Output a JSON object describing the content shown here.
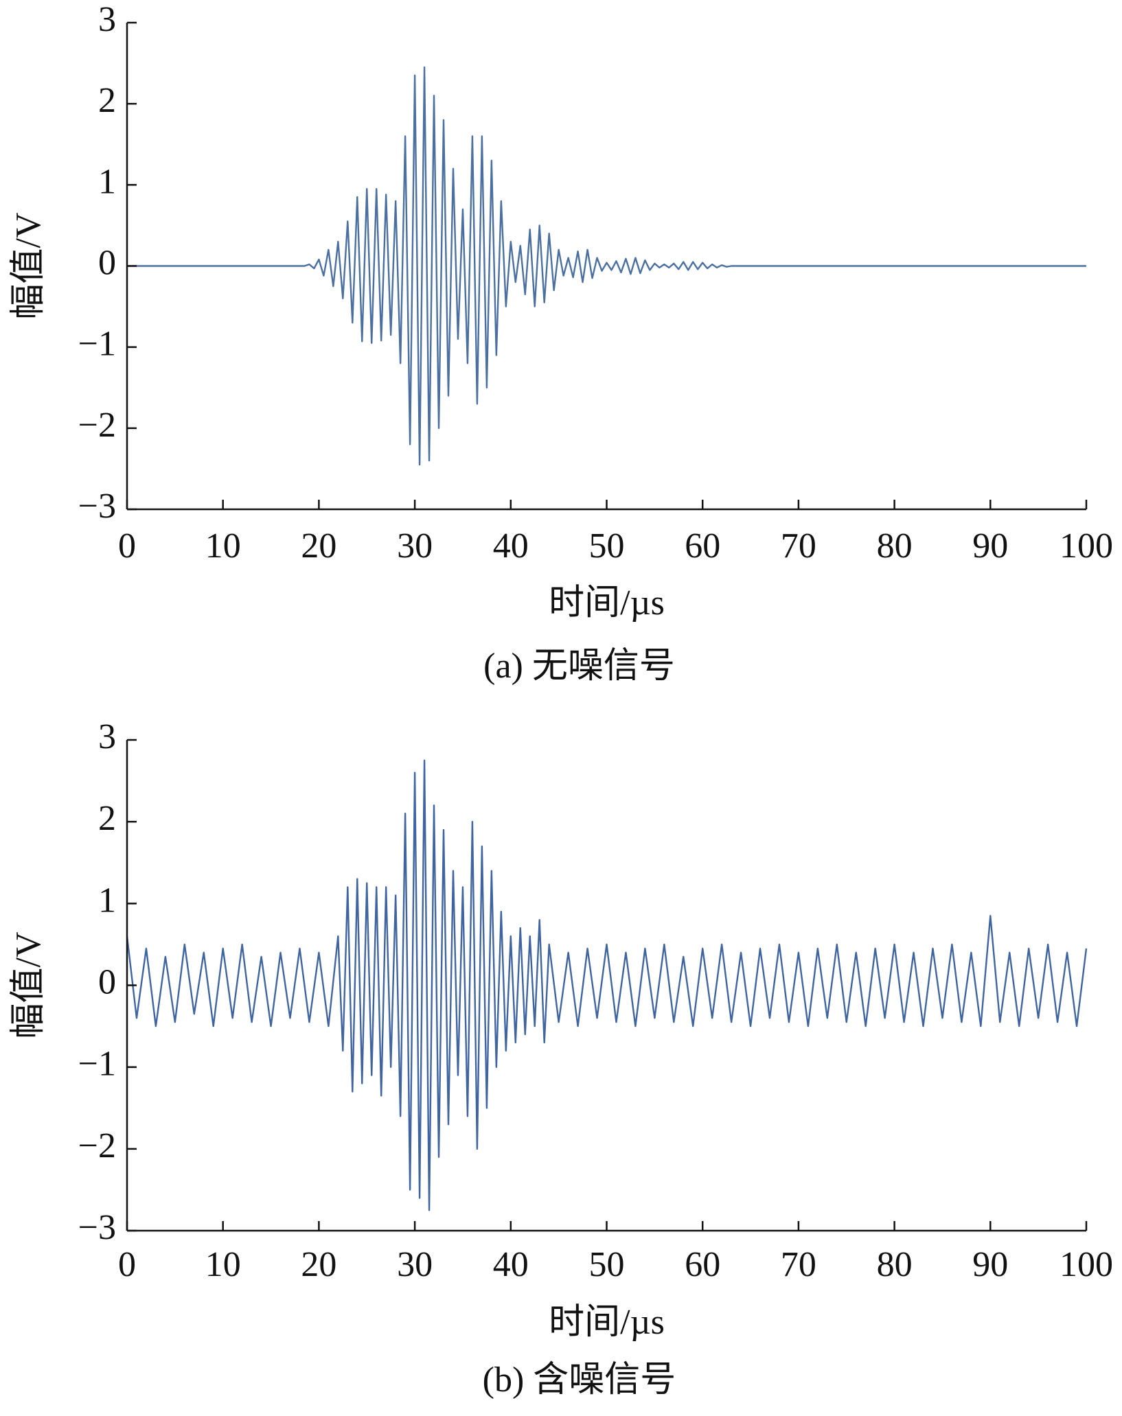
{
  "chart_data": [
    {
      "type": "line",
      "caption": "(a) 无噪信号",
      "x_label": "时间/µs",
      "y_label": "幅值/V",
      "color": "#4a6fa0",
      "xlim": [
        0,
        100
      ],
      "ylim": [
        -3,
        3
      ],
      "xticks": [
        0,
        10,
        20,
        30,
        40,
        50,
        60,
        70,
        80,
        90,
        100
      ],
      "yticks": [
        {
          "value": -3,
          "label": "−3"
        },
        {
          "value": -2,
          "label": "−2"
        },
        {
          "value": -1,
          "label": "−1"
        },
        0,
        1,
        2,
        3
      ],
      "x": [
        0,
        18,
        18.5,
        19,
        19.5,
        20,
        20.5,
        21,
        21.5,
        22,
        22.5,
        23,
        23.5,
        24,
        24.5,
        25,
        25.5,
        26,
        26.5,
        27,
        27.5,
        28,
        28.5,
        29,
        29.5,
        30,
        30.5,
        31,
        31.5,
        32,
        32.5,
        33,
        33.5,
        34,
        34.5,
        35,
        35.5,
        36,
        36.5,
        37,
        37.5,
        38,
        38.5,
        39,
        39.5,
        40,
        40.5,
        41,
        41.5,
        42,
        42.5,
        43,
        43.5,
        44,
        44.5,
        45,
        45.5,
        46,
        46.5,
        47,
        47.5,
        48,
        48.5,
        49,
        49.5,
        50,
        50.5,
        51,
        51.5,
        52,
        52.5,
        53,
        53.5,
        54,
        54.5,
        55,
        55.5,
        56,
        56.5,
        57,
        57.5,
        58,
        58.5,
        59,
        59.5,
        60,
        60.5,
        61,
        61.5,
        62,
        62.5,
        63,
        63.5,
        64,
        100
      ],
      "values": [
        0,
        0,
        0,
        0.02,
        -0.03,
        0.08,
        -0.12,
        0.2,
        -0.25,
        0.3,
        -0.4,
        0.55,
        -0.7,
        0.85,
        -0.93,
        0.95,
        -0.95,
        0.95,
        -0.92,
        0.88,
        -0.85,
        0.8,
        -1.2,
        1.6,
        -2.2,
        2.35,
        -2.45,
        2.45,
        -2.4,
        2.1,
        -2.0,
        1.8,
        -1.6,
        1.2,
        -0.9,
        0.7,
        -1.2,
        1.6,
        -1.7,
        1.6,
        -1.5,
        1.3,
        -1.1,
        0.8,
        -0.5,
        0.3,
        -0.2,
        0.25,
        -0.35,
        0.45,
        -0.5,
        0.5,
        -0.45,
        0.4,
        -0.3,
        0.2,
        -0.12,
        0.1,
        -0.14,
        0.18,
        -0.2,
        0.2,
        -0.15,
        0.1,
        -0.06,
        0.04,
        -0.05,
        0.06,
        -0.08,
        0.09,
        -0.1,
        0.1,
        -0.09,
        0.07,
        -0.05,
        0.03,
        -0.02,
        0.02,
        -0.02,
        0.03,
        -0.04,
        0.05,
        -0.05,
        0.05,
        -0.04,
        0.04,
        -0.03,
        0.02,
        -0.02,
        0.01,
        -0.01,
        0,
        0,
        0,
        0
      ]
    },
    {
      "type": "line",
      "caption": "(b) 含噪信号",
      "x_label": "时间/µs",
      "y_label": "幅值/V",
      "color": "#3f64a0",
      "xlim": [
        0,
        100
      ],
      "ylim": [
        -3,
        3
      ],
      "xticks": [
        0,
        10,
        20,
        30,
        40,
        50,
        60,
        70,
        80,
        90,
        100
      ],
      "yticks": [
        {
          "value": -3,
          "label": "−3"
        },
        {
          "value": -2,
          "label": "−2"
        },
        {
          "value": -1,
          "label": "−1"
        },
        0,
        1,
        2,
        3
      ],
      "x": [
        0,
        1,
        2,
        3,
        4,
        5,
        6,
        7,
        8,
        9,
        10,
        11,
        12,
        13,
        14,
        15,
        16,
        17,
        18,
        19,
        20,
        21,
        22,
        22.5,
        23,
        23.5,
        24,
        24.5,
        25,
        25.5,
        26,
        26.5,
        27,
        27.5,
        28,
        28.5,
        29,
        29.5,
        30,
        30.5,
        31,
        31.5,
        32,
        32.5,
        33,
        33.5,
        34,
        34.5,
        35,
        35.5,
        36,
        36.5,
        37,
        37.5,
        38,
        38.5,
        39,
        39.5,
        40,
        40.5,
        41,
        41.5,
        42,
        42.5,
        43,
        43.5,
        44,
        45,
        46,
        47,
        48,
        49,
        50,
        51,
        52,
        53,
        54,
        55,
        56,
        57,
        58,
        59,
        60,
        61,
        62,
        63,
        64,
        65,
        66,
        67,
        68,
        69,
        70,
        71,
        72,
        73,
        74,
        75,
        76,
        77,
        78,
        79,
        80,
        81,
        82,
        83,
        84,
        85,
        86,
        87,
        88,
        89,
        90,
        91,
        92,
        93,
        94,
        95,
        96,
        97,
        98,
        99,
        100
      ],
      "values": [
        0.6,
        -0.4,
        0.45,
        -0.5,
        0.35,
        -0.45,
        0.5,
        -0.35,
        0.4,
        -0.5,
        0.45,
        -0.4,
        0.5,
        -0.45,
        0.35,
        -0.5,
        0.4,
        -0.4,
        0.45,
        -0.45,
        0.4,
        -0.5,
        0.6,
        -0.8,
        1.2,
        -1.3,
        1.3,
        -1.2,
        1.25,
        -1.1,
        1.2,
        -1.35,
        1.2,
        -1.0,
        1.1,
        -1.6,
        2.1,
        -2.5,
        2.6,
        -2.6,
        2.75,
        -2.75,
        2.2,
        -2.1,
        1.9,
        -1.7,
        1.4,
        -1.1,
        1.2,
        -1.6,
        2.0,
        -2.0,
        1.7,
        -1.5,
        1.4,
        -1.0,
        0.9,
        -0.8,
        0.6,
        -0.7,
        0.7,
        -0.6,
        0.6,
        -0.5,
        0.8,
        -0.7,
        0.5,
        -0.45,
        0.4,
        -0.5,
        0.45,
        -0.4,
        0.5,
        -0.45,
        0.4,
        -0.5,
        0.45,
        -0.4,
        0.5,
        -0.45,
        0.35,
        -0.5,
        0.45,
        -0.4,
        0.5,
        -0.45,
        0.4,
        -0.5,
        0.45,
        -0.4,
        0.5,
        -0.45,
        0.4,
        -0.5,
        0.45,
        -0.4,
        0.5,
        -0.45,
        0.4,
        -0.5,
        0.45,
        -0.4,
        0.5,
        -0.45,
        0.4,
        -0.5,
        0.45,
        -0.4,
        0.5,
        -0.45,
        0.4,
        -0.5,
        0.85,
        -0.45,
        0.4,
        -0.5,
        0.45,
        -0.4,
        0.5,
        -0.45,
        0.4,
        -0.5,
        0.45
      ]
    }
  ]
}
